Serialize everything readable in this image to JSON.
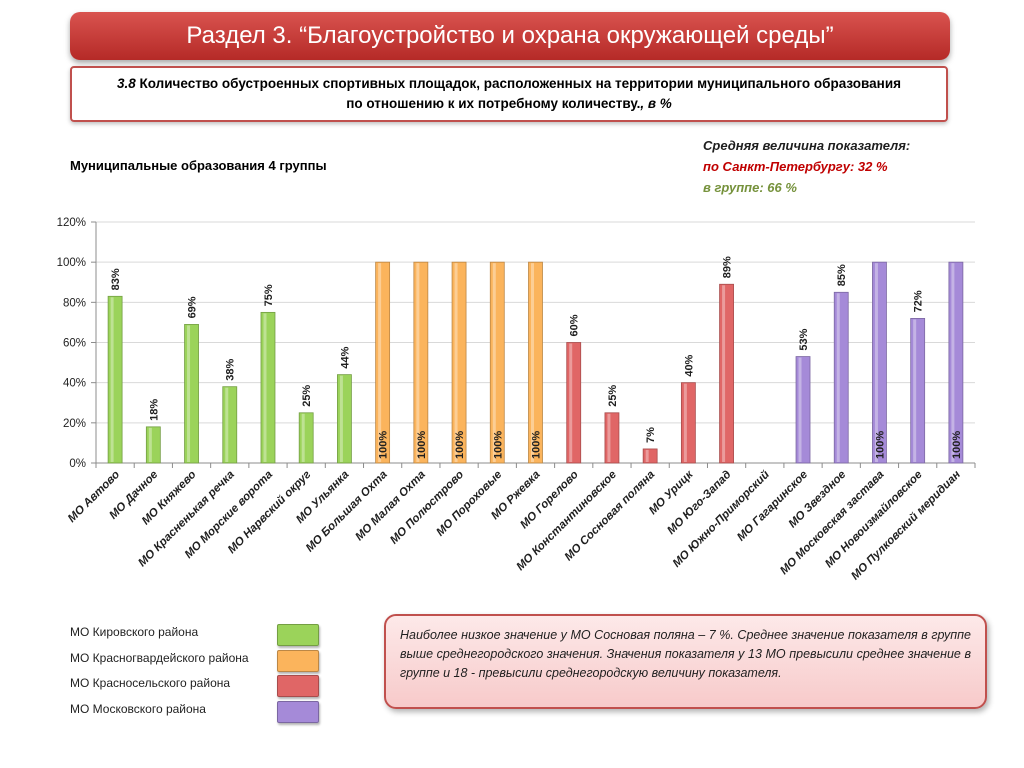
{
  "header": {
    "title": "Раздел 3. “Благоустройство и охрана окружающей среды”"
  },
  "subtitle": {
    "num": "3.8",
    "text": " Количество обустроенных спортивных площадок, расположенных на территории муниципального образования по отношению к их потребному количеству.",
    "unit": ", в %"
  },
  "group_label": "Муниципальные образования 4 группы",
  "averages": {
    "heading": "Средняя величина показателя:",
    "spb": "по Санкт-Петербургу:  32 %",
    "group": "в группе:  66 %"
  },
  "legend": [
    {
      "label": "МО Кировского района",
      "color": "#9bd35a"
    },
    {
      "label": "МО Красногвардейского района",
      "color": "#fbb45c"
    },
    {
      "label": "МО Красносельского района",
      "color": "#e06666"
    },
    {
      "label": "МО Московского района",
      "color": "#a58ad8"
    }
  ],
  "note": "Наиболее низкое значение у МО Сосновая поляна – 7 %. Среднее значение показателя в группе выше среднегородского значения. Значения показателя у 13 МО превысили среднее значение в группе и 18 - превысили среднегородскую величину показателя.",
  "chart_data": {
    "type": "bar",
    "ylim": [
      0,
      120
    ],
    "yticks": [
      "0%",
      "20%",
      "40%",
      "60%",
      "80%",
      "100%",
      "120%"
    ],
    "grid": true,
    "categories": [
      "МО Автово",
      "МО Дачное",
      "МО Княжево",
      "МО Красненькая речка",
      "МО Морские ворота",
      "МО Нарвский округ",
      "МО Ульянка",
      "МО Большая Охта",
      "МО Малая Охта",
      "МО Полюстрово",
      "МО Пороховые",
      "МО Ржевка",
      "МО Горелово",
      "МО Константиновское",
      "МО Сосновая поляна",
      "МО Урицк",
      "МО Юго-Запад",
      "МО Южно-Приморский",
      "МО Гагаринское",
      "МО Звездное",
      "МО Московская застава",
      "МО Новоизмайловское",
      "МО Пулковский меридиан"
    ],
    "values": [
      83,
      18,
      69,
      38,
      75,
      25,
      44,
      100,
      100,
      100,
      100,
      100,
      60,
      25,
      7,
      40,
      89,
      null,
      53,
      85,
      100,
      72,
      100
    ],
    "labels": [
      "83%",
      "18%",
      "69%",
      "38%",
      "75%",
      "25%",
      "44%",
      "100%",
      "100%",
      "100%",
      "100%",
      "100%",
      "60%",
      "25%",
      "7%",
      "40%",
      "89%",
      "",
      "53%",
      "85%",
      "100%",
      "72%",
      "100%"
    ],
    "groups": [
      0,
      0,
      0,
      0,
      0,
      0,
      0,
      1,
      1,
      1,
      1,
      1,
      2,
      2,
      2,
      2,
      2,
      2,
      3,
      3,
      3,
      3,
      3
    ]
  }
}
